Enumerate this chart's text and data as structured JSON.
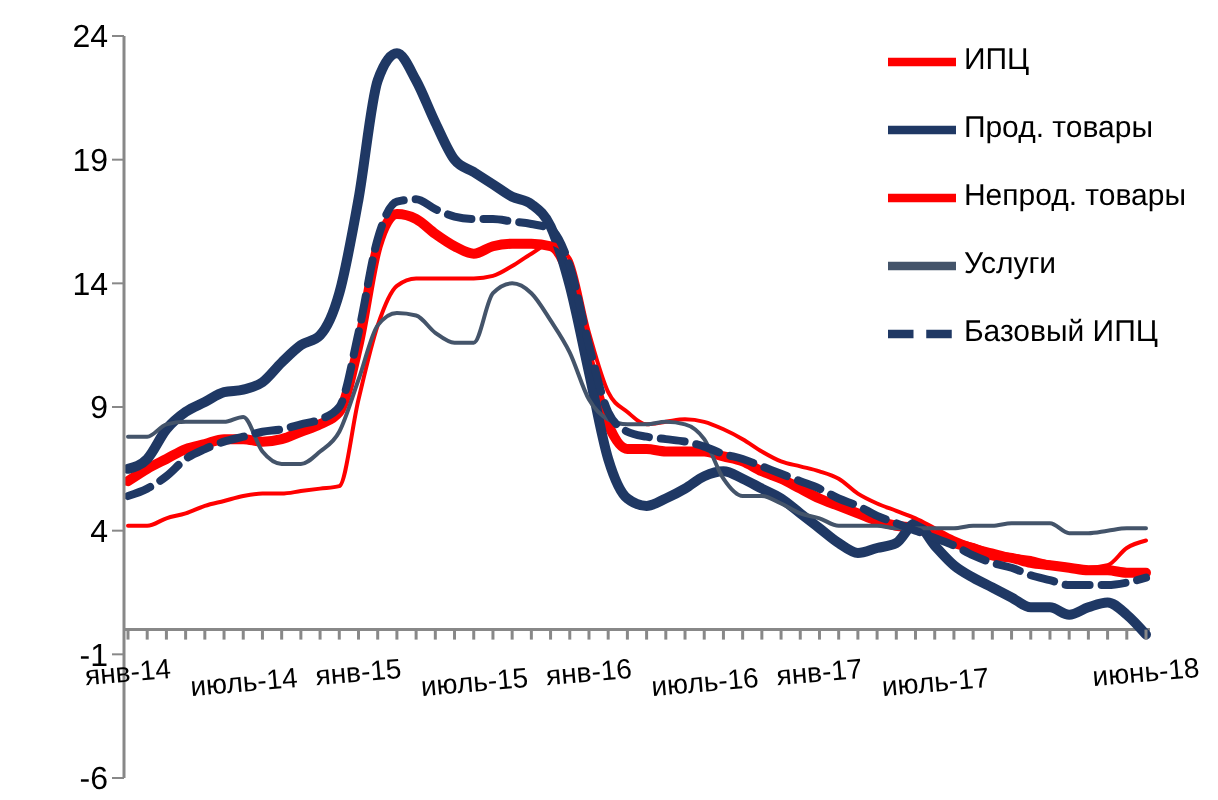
{
  "chart_data": {
    "type": "line",
    "categories": [
      "янв-14",
      null,
      null,
      null,
      null,
      null,
      "июль-14",
      null,
      null,
      null,
      null,
      null,
      "янв-15",
      null,
      null,
      null,
      null,
      null,
      "июль-15",
      null,
      null,
      null,
      null,
      null,
      "янв-16",
      null,
      null,
      null,
      null,
      null,
      "июль-16",
      null,
      null,
      null,
      null,
      null,
      "янв-17",
      null,
      null,
      null,
      null,
      null,
      "июль-17",
      null,
      null,
      null,
      null,
      null,
      null,
      null,
      null,
      null,
      null,
      "июнь-18"
    ],
    "series": [
      {
        "name": "ИПЦ",
        "color": "#ff0000",
        "values": [
          6.0,
          6.5,
          6.9,
          7.3,
          7.5,
          7.7,
          7.7,
          7.6,
          7.7,
          8.0,
          8.3,
          8.8,
          11.5,
          15.5,
          16.8,
          16.6,
          16.0,
          15.5,
          15.2,
          15.5,
          15.6,
          15.6,
          15.5,
          14.2,
          10.9,
          8.3,
          7.3,
          7.3,
          7.2,
          7.2,
          7.2,
          7.0,
          6.8,
          6.4,
          6.1,
          5.7,
          5.3,
          5.0,
          4.7,
          4.4,
          4.2,
          4.1,
          3.8,
          3.5,
          3.3,
          3.0,
          2.9,
          2.7,
          2.6,
          2.5,
          2.4,
          2.4,
          2.3,
          2.3
        ]
      },
      {
        "name": "Прод. товары",
        "color": "#1f3864",
        "values": [
          6.5,
          6.9,
          8.1,
          8.8,
          9.2,
          9.6,
          9.7,
          10.0,
          10.8,
          11.5,
          11.9,
          13.6,
          17.4,
          22.2,
          23.3,
          22.2,
          20.5,
          19.0,
          18.5,
          18.0,
          17.5,
          17.2,
          16.3,
          13.9,
          10.4,
          6.9,
          5.3,
          5.0,
          5.3,
          5.7,
          6.2,
          6.4,
          6.1,
          5.7,
          5.3,
          4.7,
          4.1,
          3.5,
          3.1,
          3.3,
          3.5,
          4.3,
          3.4,
          2.6,
          2.1,
          1.7,
          1.3,
          0.9,
          0.9,
          0.6,
          0.9,
          1.1,
          0.6,
          -0.2
        ]
      },
      {
        "name": "Непрод. товары",
        "color": "#ff0000",
        "values": [
          4.2,
          4.2,
          4.5,
          4.7,
          5.0,
          5.2,
          5.4,
          5.5,
          5.5,
          5.6,
          5.7,
          5.8,
          9.3,
          12.3,
          13.9,
          14.2,
          14.2,
          14.2,
          14.2,
          14.3,
          14.7,
          15.2,
          15.6,
          15.0,
          12.0,
          9.6,
          8.8,
          8.3,
          8.4,
          8.5,
          8.4,
          8.1,
          7.7,
          7.2,
          6.8,
          6.6,
          6.4,
          6.1,
          5.5,
          5.1,
          4.8,
          4.5,
          4.1,
          3.7,
          3.4,
          3.2,
          3.0,
          2.9,
          2.7,
          2.6,
          2.5,
          2.6,
          3.3,
          3.6
        ]
      },
      {
        "name": "Услуги",
        "color": "#44546a",
        "values": [
          7.8,
          7.8,
          8.3,
          8.4,
          8.4,
          8.4,
          8.6,
          7.2,
          6.7,
          6.7,
          7.2,
          8.0,
          10.1,
          12.3,
          12.8,
          12.7,
          12.0,
          11.6,
          11.6,
          13.6,
          14.0,
          13.6,
          12.5,
          11.2,
          9.3,
          8.5,
          8.3,
          8.3,
          8.4,
          8.3,
          7.7,
          6.1,
          5.4,
          5.4,
          5.1,
          4.7,
          4.5,
          4.2,
          4.2,
          4.2,
          4.1,
          4.1,
          4.1,
          4.1,
          4.2,
          4.2,
          4.3,
          4.3,
          4.3,
          3.9,
          3.9,
          4.0,
          4.1,
          4.1
        ]
      },
      {
        "name": "Базовый ИПЦ",
        "color": "#1f3864",
        "line_style": "dashed",
        "values": [
          5.4,
          5.7,
          6.2,
          6.9,
          7.3,
          7.6,
          7.8,
          8.0,
          8.1,
          8.3,
          8.5,
          9.0,
          12.0,
          15.8,
          17.3,
          17.4,
          17.0,
          16.7,
          16.6,
          16.6,
          16.5,
          16.4,
          16.2,
          14.7,
          11.5,
          8.8,
          8.0,
          7.8,
          7.7,
          7.6,
          7.4,
          7.1,
          6.9,
          6.6,
          6.3,
          6.0,
          5.7,
          5.3,
          5.0,
          4.6,
          4.3,
          4.0,
          3.7,
          3.4,
          3.0,
          2.7,
          2.5,
          2.2,
          2.0,
          1.8,
          1.8,
          1.8,
          1.9,
          2.1
        ]
      }
    ],
    "ylim": [
      -6,
      24
    ],
    "yticks": [
      -6,
      -1,
      4,
      9,
      14,
      19,
      24
    ],
    "grid": false,
    "legend": "top right",
    "marker": "none",
    "line_style": "solid"
  }
}
